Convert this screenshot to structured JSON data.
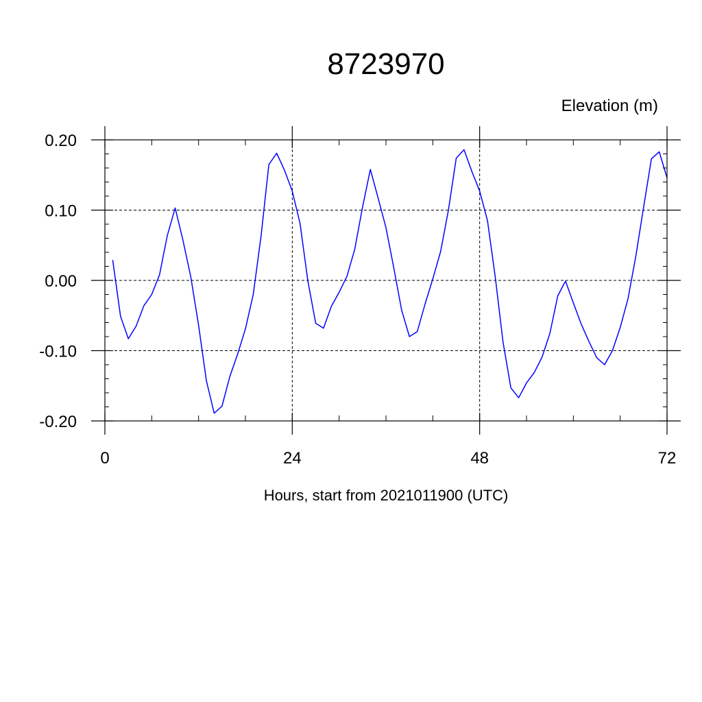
{
  "chart_data": {
    "type": "line",
    "title": "8723970",
    "ylabel": "Elevation (m)",
    "xlabel": "Hours, start from 2021011900 (UTC)",
    "xlim": [
      0,
      72
    ],
    "ylim": [
      -0.2,
      0.2
    ],
    "xticks": [
      0,
      24,
      48,
      72
    ],
    "xtick_labels": [
      "0",
      "24",
      "48",
      "72"
    ],
    "yticks": [
      0.2,
      0.1,
      0.0,
      -0.1,
      -0.2
    ],
    "ytick_labels": [
      "0.20",
      "0.10",
      "0.00",
      "-0.10",
      "-0.20"
    ],
    "grid": true,
    "line_color": "#0000ff",
    "series": [
      {
        "x": [
          1,
          2,
          3,
          4,
          5,
          6,
          7,
          8,
          9,
          10,
          11,
          12,
          13,
          14,
          15,
          16,
          17,
          18,
          19,
          20,
          21,
          22,
          23,
          24,
          25,
          26,
          27,
          28,
          29,
          30,
          31,
          32,
          33,
          34,
          35,
          36,
          37,
          38,
          39,
          40,
          41,
          42,
          43,
          44,
          45,
          46,
          47,
          48,
          49,
          50,
          51,
          52,
          53,
          54,
          55,
          56,
          57,
          58,
          59,
          60,
          61,
          62,
          63,
          64,
          65,
          66,
          67,
          68,
          69,
          70,
          71,
          72
        ],
        "values": [
          0.029,
          -0.051,
          -0.083,
          -0.065,
          -0.036,
          -0.02,
          0.008,
          0.064,
          0.103,
          0.057,
          0.005,
          -0.064,
          -0.143,
          -0.189,
          -0.179,
          -0.137,
          -0.105,
          -0.069,
          -0.02,
          0.063,
          0.165,
          0.181,
          0.157,
          0.127,
          0.081,
          -0.001,
          -0.061,
          -0.068,
          -0.037,
          -0.017,
          0.006,
          0.044,
          0.104,
          0.158,
          0.117,
          0.075,
          0.018,
          -0.042,
          -0.08,
          -0.073,
          -0.034,
          0.002,
          0.041,
          0.1,
          0.174,
          0.186,
          0.155,
          0.127,
          0.085,
          0.005,
          -0.088,
          -0.153,
          -0.167,
          -0.146,
          -0.131,
          -0.109,
          -0.075,
          -0.022,
          -0.001,
          -0.032,
          -0.062,
          -0.087,
          -0.11,
          -0.12,
          -0.1,
          -0.067,
          -0.026,
          0.034,
          0.104,
          0.173,
          0.183,
          0.146
        ]
      }
    ]
  }
}
